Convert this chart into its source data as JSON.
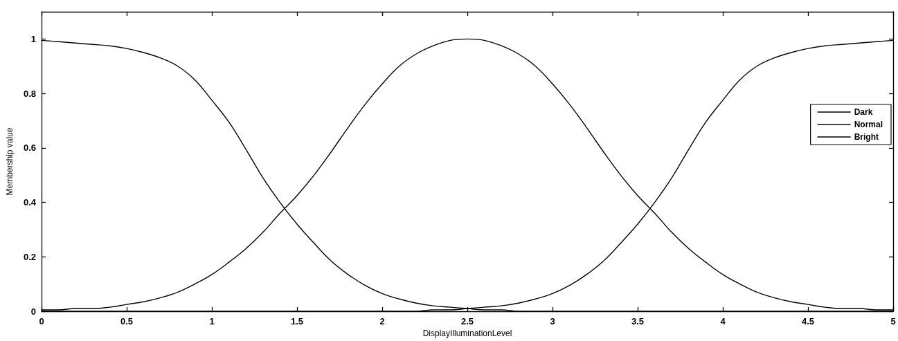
{
  "chart_data": {
    "type": "line",
    "xlabel": "DisplayIlluminationLevel",
    "ylabel": "Membership value",
    "x": [
      0,
      0.1,
      0.2,
      0.3,
      0.4,
      0.5,
      0.6,
      0.7,
      0.8,
      0.9,
      1,
      1.1,
      1.2,
      1.3,
      1.4,
      1.5,
      1.6,
      1.7,
      1.8,
      1.9,
      2,
      2.1,
      2.2,
      2.3,
      2.4,
      2.5,
      2.6,
      2.7,
      2.8,
      2.9,
      3,
      3.1,
      3.2,
      3.3,
      3.4,
      3.5,
      3.6,
      3.7,
      3.8,
      3.9,
      4,
      4.1,
      4.2,
      4.3,
      4.4,
      4.5,
      4.6,
      4.7,
      4.8,
      4.9,
      5
    ],
    "series": [
      {
        "name": "Dark",
        "color": "#000000",
        "values": [
          0.995,
          0.99,
          0.985,
          0.98,
          0.975,
          0.965,
          0.95,
          0.93,
          0.9,
          0.85,
          0.775,
          0.695,
          0.595,
          0.49,
          0.4,
          0.32,
          0.25,
          0.185,
          0.135,
          0.095,
          0.065,
          0.045,
          0.03,
          0.02,
          0.015,
          0.01,
          0.005,
          0.005,
          0,
          0,
          0,
          0,
          0,
          0,
          0,
          0,
          0,
          0,
          0,
          0,
          0,
          0,
          0,
          0,
          0,
          0,
          0,
          0,
          0,
          0,
          0
        ]
      },
      {
        "name": "Normal",
        "color": "#000000",
        "values": [
          0.005,
          0.005,
          0.01,
          0.01,
          0.015,
          0.025,
          0.035,
          0.05,
          0.07,
          0.1,
          0.135,
          0.18,
          0.23,
          0.29,
          0.36,
          0.425,
          0.5,
          0.585,
          0.675,
          0.76,
          0.835,
          0.9,
          0.945,
          0.975,
          0.995,
          1,
          0.995,
          0.975,
          0.945,
          0.9,
          0.835,
          0.76,
          0.675,
          0.585,
          0.5,
          0.425,
          0.36,
          0.29,
          0.23,
          0.18,
          0.135,
          0.1,
          0.07,
          0.05,
          0.035,
          0.025,
          0.015,
          0.01,
          0.01,
          0.005,
          0.005
        ]
      },
      {
        "name": "Bright",
        "color": "#000000",
        "values": [
          0,
          0,
          0,
          0,
          0,
          0,
          0,
          0,
          0,
          0,
          0,
          0,
          0,
          0,
          0,
          0,
          0,
          0,
          0,
          0,
          0,
          0,
          0,
          0.005,
          0.005,
          0.01,
          0.015,
          0.02,
          0.03,
          0.045,
          0.065,
          0.095,
          0.135,
          0.185,
          0.25,
          0.32,
          0.4,
          0.49,
          0.595,
          0.695,
          0.775,
          0.85,
          0.9,
          0.93,
          0.95,
          0.965,
          0.975,
          0.98,
          0.985,
          0.99,
          0.995
        ]
      }
    ],
    "xlim": [
      0,
      5
    ],
    "xticks": [
      0,
      0.5,
      1,
      1.5,
      2,
      2.5,
      3,
      3.5,
      4,
      4.5,
      5
    ],
    "ylim": [
      0,
      1.1
    ],
    "yticks": [
      0,
      0.2,
      0.4,
      0.6,
      0.8,
      1
    ],
    "grid": false,
    "legend": "right",
    "marker": "none",
    "line_style": "solid"
  }
}
